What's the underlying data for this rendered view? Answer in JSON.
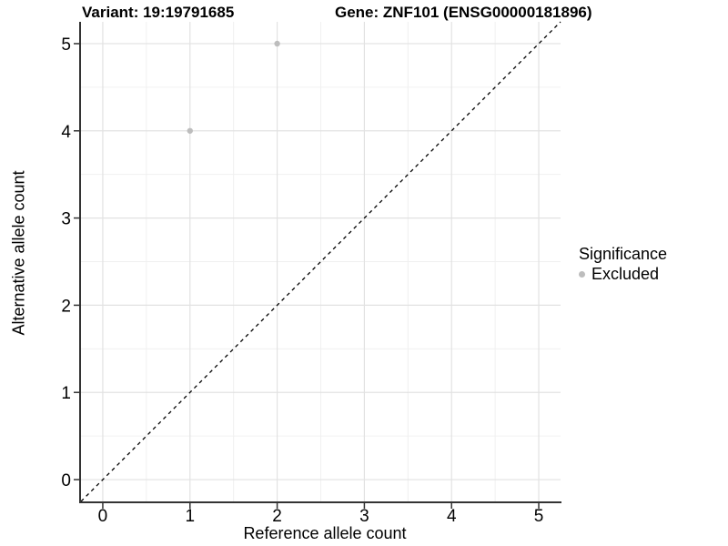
{
  "titles": {
    "variant": "Variant: 19:19791685",
    "gene": "Gene: ZNF101 (ENSG00000181896)"
  },
  "chart_data": {
    "type": "scatter",
    "title_left": "Variant: 19:19791685",
    "title_right": "Gene: ZNF101 (ENSG00000181896)",
    "xlabel": "Reference allele count",
    "ylabel": "Alternative allele count",
    "xlim": [
      -0.25,
      5.25
    ],
    "ylim": [
      -0.25,
      5.25
    ],
    "xticks": [
      0,
      1,
      2,
      3,
      4,
      5
    ],
    "yticks": [
      0,
      1,
      2,
      3,
      4,
      5
    ],
    "x_minor_gridlines": [
      0.5,
      1.5,
      2.5,
      3.5,
      4.5
    ],
    "y_minor_gridlines": [
      0.5,
      1.5,
      2.5,
      3.5,
      4.5
    ],
    "grid": "major-and-minor",
    "identity_line": {
      "style": "dashed",
      "from": [
        -0.25,
        -0.25
      ],
      "to": [
        5.25,
        5.25
      ],
      "color": "#000000"
    },
    "series": [
      {
        "name": "Excluded",
        "color": "#bdbdbd",
        "points": [
          {
            "x": 1,
            "y": 4
          },
          {
            "x": 2,
            "y": 5
          }
        ]
      }
    ],
    "legend": {
      "title": "Significance",
      "position": "right",
      "entries": [
        {
          "label": "Excluded",
          "color": "#bdbdbd"
        }
      ]
    },
    "colors": {
      "grid_major": "#e2e2e2",
      "grid_minor": "#f0f0f0",
      "axis_line": "#333333",
      "tick_mark": "#333333",
      "text": "#000000",
      "point": "#bdbdbd"
    }
  }
}
